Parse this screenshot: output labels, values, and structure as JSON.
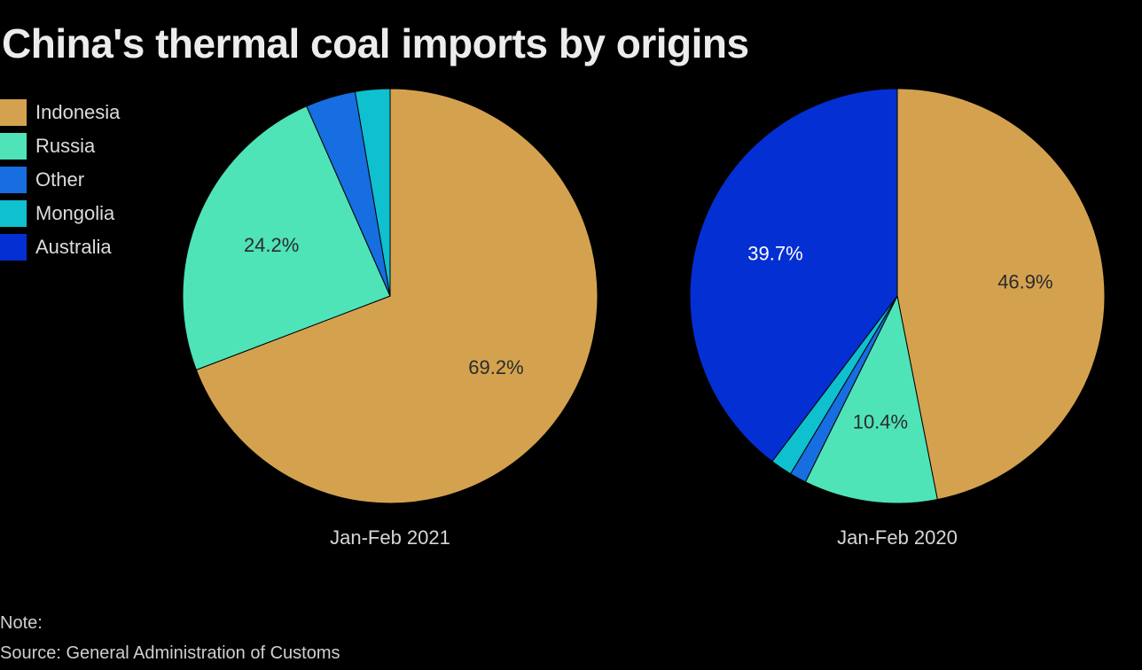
{
  "title": "China's thermal coal imports by origins",
  "legend": [
    {
      "label": "Indonesia",
      "color": "#d4a24f"
    },
    {
      "label": "Russia",
      "color": "#4fe3b8"
    },
    {
      "label": "Other",
      "color": "#166ee0"
    },
    {
      "label": "Mongolia",
      "color": "#0fc0cf"
    },
    {
      "label": "Australia",
      "color": "#032fd3"
    }
  ],
  "chart_data": [
    {
      "type": "pie",
      "xlabel": "Jan-Feb 2021",
      "slices": [
        {
          "name": "Indonesia",
          "value": 69.2,
          "label": "69.2%",
          "color": "#d4a24f",
          "label_color": "#2b2b2b"
        },
        {
          "name": "Russia",
          "value": 24.2,
          "label": "24.2%",
          "color": "#4fe3b8",
          "label_color": "#2b2b2b"
        },
        {
          "name": "Other",
          "value": 3.9,
          "label": "",
          "color": "#166ee0",
          "label_color": "#ffffff"
        },
        {
          "name": "Mongolia",
          "value": 2.7,
          "label": "",
          "color": "#0fc0cf",
          "label_color": "#ffffff"
        }
      ]
    },
    {
      "type": "pie",
      "xlabel": "Jan-Feb 2020",
      "slices": [
        {
          "name": "Indonesia",
          "value": 46.9,
          "label": "46.9%",
          "color": "#d4a24f",
          "label_color": "#2b2b2b"
        },
        {
          "name": "Russia",
          "value": 10.4,
          "label": "10.4%",
          "color": "#4fe3b8",
          "label_color": "#2b2b2b"
        },
        {
          "name": "Other",
          "value": 1.3,
          "label": "",
          "color": "#166ee0",
          "label_color": "#ffffff"
        },
        {
          "name": "Mongolia",
          "value": 1.7,
          "label": "",
          "color": "#0fc0cf",
          "label_color": "#ffffff"
        },
        {
          "name": "Australia",
          "value": 39.7,
          "label": "39.7%",
          "color": "#032fd3",
          "label_color": "#ffffff"
        }
      ]
    }
  ],
  "footer": {
    "note": "Note:",
    "source": "Source: General Administration of Customs"
  }
}
